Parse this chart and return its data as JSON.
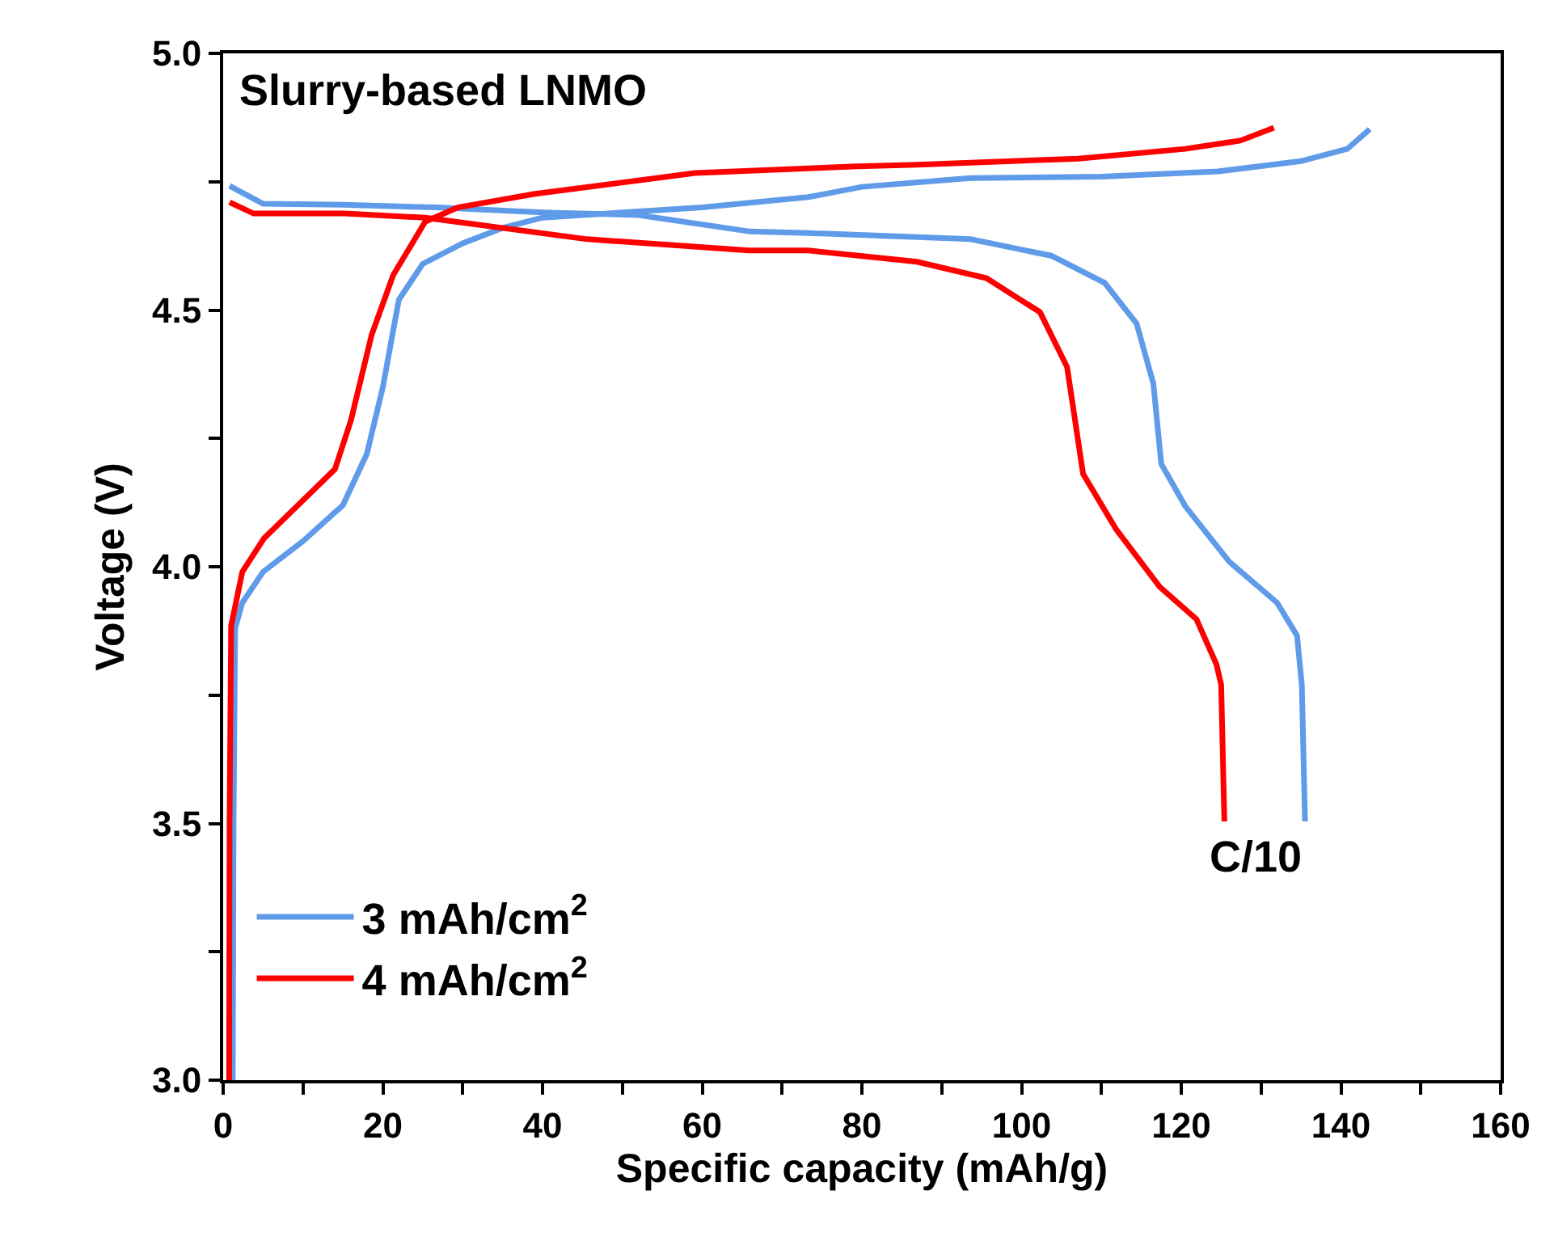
{
  "chart_data": {
    "type": "line",
    "title": "Slurry-based LNMO",
    "xlabel": "Specific capacity (mAh/g)",
    "ylabel": "Voltage (V)",
    "series": [
      {
        "name": "3 mAh/cm$^{2}$",
        "color": "#5f9be8",
        "x": [
          1.2,
          1.3,
          1.5,
          2.4,
          5,
          10,
          15,
          18,
          20,
          22,
          25,
          30,
          35,
          40,
          50,
          60,
          73.3,
          80,
          93.6,
          110,
          124.6,
          135,
          140.8,
          143.6,
          null,
          0.8,
          5,
          15,
          26.7,
          40,
          52,
          66,
          73.3,
          93.6,
          103.7,
          110.4,
          114.4,
          116.5,
          117.5,
          120.5,
          126,
          132,
          134.5,
          135.1,
          135.5
        ],
        "values": [
          3.0,
          3.5,
          3.88,
          3.93,
          3.99,
          4.05,
          4.12,
          4.22,
          4.35,
          4.52,
          4.59,
          4.63,
          4.66,
          4.68,
          4.69,
          4.7,
          4.72,
          4.74,
          4.757,
          4.76,
          4.77,
          4.79,
          4.814,
          4.852,
          null,
          4.742,
          4.707,
          4.705,
          4.7,
          4.69,
          4.685,
          4.653,
          4.65,
          4.638,
          4.606,
          4.553,
          4.474,
          4.357,
          4.2,
          4.118,
          4.01,
          3.93,
          3.866,
          3.77,
          3.504
        ]
      },
      {
        "name": "4 mAh/cm$^{2}$",
        "color": "#ff0000",
        "x": [
          0.75,
          0.8,
          1,
          2.4,
          5.1,
          10.5,
          14,
          16,
          18.6,
          21.3,
          25.3,
          29.4,
          38.9,
          59.1,
          79.4,
          86.9,
          107.1,
          120.5,
          127.4,
          131.6,
          null,
          0.8,
          3.8,
          15.2,
          25.3,
          45.6,
          65.8,
          73.3,
          86.9,
          95.6,
          102.3,
          105.7,
          107.7,
          111.8,
          117.3,
          121.9,
          124.4,
          125,
          125.4
        ],
        "values": [
          3.0,
          3.5,
          3.885,
          3.99,
          4.055,
          4.137,
          4.19,
          4.285,
          4.452,
          4.568,
          4.672,
          4.7,
          4.726,
          4.767,
          4.78,
          4.783,
          4.795,
          4.814,
          4.83,
          4.855,
          null,
          4.71,
          4.688,
          4.688,
          4.68,
          4.638,
          4.616,
          4.616,
          4.594,
          4.562,
          4.496,
          4.389,
          4.181,
          4.074,
          3.961,
          3.898,
          3.81,
          3.77,
          3.504
        ]
      }
    ],
    "xlim": [
      0,
      160
    ],
    "ylim": [
      3.0,
      5.0
    ],
    "xticks": [
      0,
      {
        "value": 10,
        "label": null
      },
      20,
      {
        "value": 30,
        "label": null
      },
      40,
      {
        "value": 50,
        "label": null
      },
      60,
      {
        "value": 70,
        "label": null
      },
      80,
      {
        "value": 90,
        "label": null
      },
      100,
      {
        "value": 110,
        "label": null
      },
      120,
      {
        "value": 130,
        "label": null
      },
      140,
      {
        "value": 150,
        "label": null
      },
      160
    ],
    "yticks": [
      {
        "value": 3.0,
        "label": "3.0"
      },
      {
        "value": 3.25,
        "label": null
      },
      3.5,
      {
        "value": 3.75,
        "label": null
      },
      {
        "value": 4.0,
        "label": "4.0"
      },
      {
        "value": 4.25,
        "label": null
      },
      4.5,
      {
        "value": 4.75,
        "label": null
      },
      {
        "value": 5.0,
        "label": "5.0"
      }
    ],
    "annotations": [
      "C/10"
    ],
    "legend": "bottom left",
    "marker": "none",
    "line_style": "solid"
  }
}
